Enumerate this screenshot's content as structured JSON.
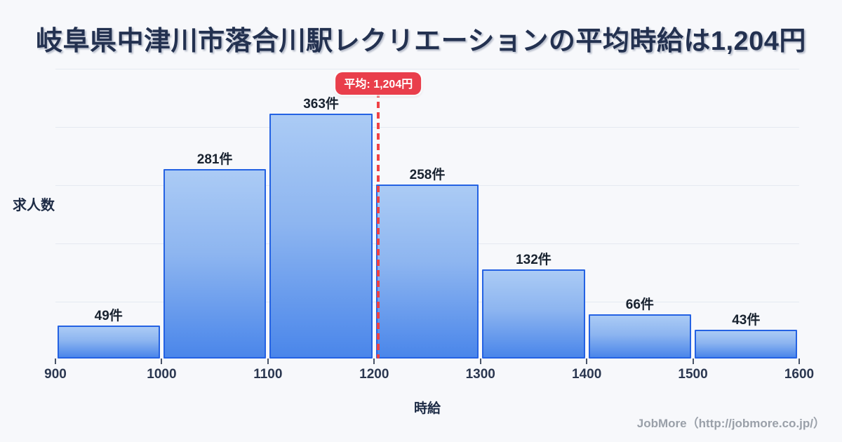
{
  "page": {
    "title": "岐阜県中津川市落合川駅レクリエーションの平均時給は1,204円"
  },
  "chart_data": {
    "type": "bar",
    "title": "岐阜県中津川市落合川駅レクリエーションの平均時給は1,204円",
    "xlabel": "時給",
    "ylabel": "求人数",
    "bins": [
      900,
      1000,
      1100,
      1200,
      1300,
      1400,
      1500,
      1600
    ],
    "categories": [
      "900-1000",
      "1000-1100",
      "1100-1200",
      "1200-1300",
      "1300-1400",
      "1400-1500",
      "1500-1600"
    ],
    "values": [
      49,
      281,
      363,
      258,
      132,
      66,
      43
    ],
    "bar_labels": [
      "49件",
      "281件",
      "363件",
      "258件",
      "132件",
      "66件",
      "43件"
    ],
    "x_ticks": [
      "900",
      "1000",
      "1100",
      "1200",
      "1300",
      "1400",
      "1500",
      "1600"
    ],
    "average": {
      "value": 1204,
      "label": "平均: 1,204円"
    },
    "ylim": [
      0,
      430
    ],
    "grid": true,
    "legend": false,
    "colors": {
      "bar_fill_top": "#abcbf5",
      "bar_fill_bottom": "#4a86ea",
      "bar_border": "#2462e3",
      "average_line": "#ef4146",
      "average_badge_bg": "#e93e4b",
      "average_badge_text": "#ffffff",
      "title_text": "#233150",
      "axis_text": "#2b3750",
      "grid_line": "#e5e9f1",
      "background": "#f7f8fb",
      "footer_text": "#9aa0a9"
    }
  },
  "footer": {
    "credit": "JobMore（http://jobmore.co.jp/）"
  }
}
